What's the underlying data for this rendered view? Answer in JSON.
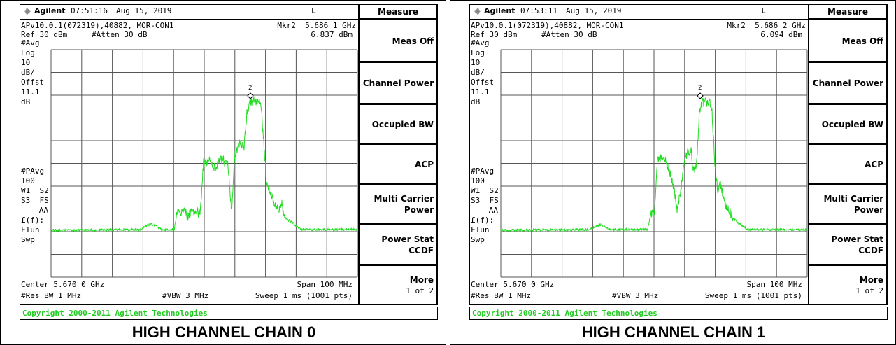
{
  "panels": [
    {
      "brand": "Agilent",
      "time": "07:51:16",
      "date": "Aug 15, 2019",
      "mode": "L",
      "info": "APv10.0.1(072319),40882, MOR-CON1",
      "marker": "Mkr2  5.686 1 GHz",
      "ref": "Ref 30 dBm",
      "atten": "#Atten 30 dB",
      "marker_level": "6.837 dBm",
      "side_labels": [
        "#Avg",
        "Log",
        "10",
        "dB/",
        "Offst",
        "11.1",
        "dB"
      ],
      "side_labels_lower": [
        "#PAvg",
        "100",
        "W1  S2",
        "S3  FS",
        "AA",
        "£(f):",
        "FTun",
        "Swp"
      ],
      "marker_id": "2",
      "center": "Center 5.670 0 GHz",
      "span": "Span 100 MHz",
      "res_bw": "#Res BW 1 MHz",
      "vbw": "#VBW 3 MHz",
      "sweep": "Sweep 1 ms (1001 pts)",
      "copyright": "Copyright 2000-2011 Agilent Technologies",
      "menu_title": "Measure",
      "softkeys": [
        {
          "lines": [
            "Meas Off"
          ]
        },
        {
          "lines": [
            "Channel Power"
          ]
        },
        {
          "lines": [
            "Occupied BW"
          ]
        },
        {
          "lines": [
            "ACP"
          ]
        },
        {
          "lines": [
            "Multi Carrier",
            "Power"
          ]
        },
        {
          "lines": [
            "Power Stat",
            "CCDF"
          ]
        },
        {
          "lines": [
            "More",
            "1 of 2"
          ]
        }
      ],
      "caption": "HIGH CHANNEL CHAIN 0"
    },
    {
      "brand": "Agilent",
      "time": "07:53:11",
      "date": "Aug 15, 2019",
      "mode": "L",
      "info": "APv10.0.1(072319),40882, MOR-CON1",
      "marker": "Mkr2  5.686 2 GHz",
      "ref": "Ref 30 dBm",
      "atten": "#Atten 30 dB",
      "marker_level": "6.094 dBm",
      "side_labels": [
        "#Avg",
        "Log",
        "10",
        "dB/",
        "Offst",
        "11.1",
        "dB"
      ],
      "side_labels_lower": [
        "#PAvg",
        "100",
        "W1  S2",
        "S3  FS",
        "AA",
        "£(f):",
        "FTun",
        "Swp"
      ],
      "marker_id": "2",
      "center": "Center 5.670 0 GHz",
      "span": "Span 100 MHz",
      "res_bw": "#Res BW 1 MHz",
      "vbw": "#VBW 3 MHz",
      "sweep": "Sweep 1 ms (1001 pts)",
      "copyright": "Copyright 2000-2011 Agilent Technologies",
      "menu_title": "Measure",
      "softkeys": [
        {
          "lines": [
            "Meas Off"
          ]
        },
        {
          "lines": [
            "Channel Power"
          ]
        },
        {
          "lines": [
            "Occupied BW"
          ]
        },
        {
          "lines": [
            "ACP"
          ]
        },
        {
          "lines": [
            "Multi Carrier",
            "Power"
          ]
        },
        {
          "lines": [
            "Power Stat",
            "CCDF"
          ]
        },
        {
          "lines": [
            "More",
            "1 of 2"
          ]
        }
      ],
      "caption": "HIGH CHANNEL CHAIN 1"
    }
  ]
}
